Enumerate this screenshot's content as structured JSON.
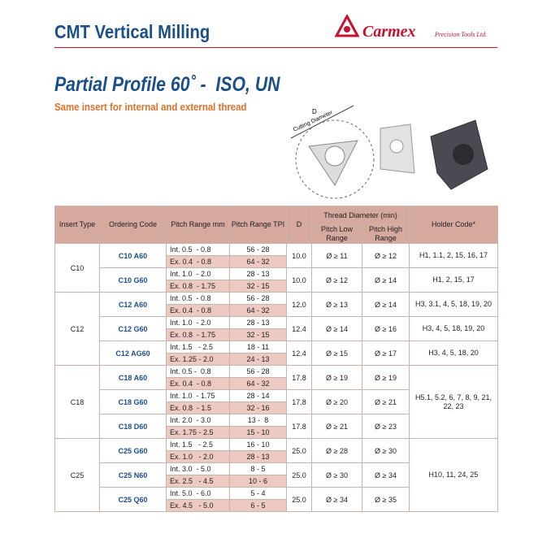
{
  "header": {
    "title": "CMT Vertical Milling",
    "brand": "Carmex",
    "brand_tagline": "Precision Tools Ltd."
  },
  "section": {
    "title": "Partial Profile 60˚ -  ISO, UN",
    "subtitle": "Same insert for internal and external thread"
  },
  "diagram": {
    "label_d": "D",
    "label_cutting": "Cutting Diameter"
  },
  "table": {
    "columns": {
      "insert_type": "Insert Type",
      "ordering_code": "Ordering Code",
      "pitch_mm": "Pitch Range mm",
      "pitch_tpi": "Pitch Range TPI",
      "d": "D",
      "thread_diameter": "Thread Diameter (min)",
      "low": "Pitch Low Range",
      "high": "Pitch High Range",
      "holder": "Holder Code*"
    },
    "groups": [
      {
        "type": "C10",
        "holder": null,
        "codes": [
          {
            "code": "C10 A60",
            "pitch": [
              [
                "Int. 0.5  - 0.8",
                "56 - 28"
              ],
              [
                "Ex. 0.4  - 0.8",
                "64 - 32"
              ]
            ],
            "d": "10.0",
            "low": "Ø ≥ 11",
            "high": "Ø ≥ 12",
            "holder": "H1, 1.1, 2, 15, 16, 17"
          },
          {
            "code": "C10 G60",
            "pitch": [
              [
                "Int. 1.0  - 2.0",
                "28 - 13"
              ],
              [
                "Ex. 0.8  - 1.75",
                "32 - 15"
              ]
            ],
            "d": "10.0",
            "low": "Ø ≥ 12",
            "high": "Ø ≥ 14",
            "holder": "H1, 2, 15, 17"
          }
        ]
      },
      {
        "type": "C12",
        "holder": null,
        "codes": [
          {
            "code": "C12 A60",
            "pitch": [
              [
                "Int. 0.5  - 0.8",
                "56 - 28"
              ],
              [
                "Ex. 0.4  - 0.8",
                "64 - 32"
              ]
            ],
            "d": "12.0",
            "low": "Ø ≥ 13",
            "high": "Ø ≥ 14",
            "holder": "H3, 3.1, 4, 5, 18, 19, 20"
          },
          {
            "code": "C12 G60",
            "pitch": [
              [
                "Int. 1.0  - 2.0",
                "28 - 13"
              ],
              [
                "Ex. 0.8  - 1.75",
                "32 - 15"
              ]
            ],
            "d": "12.4",
            "low": "Ø ≥ 14",
            "high": "Ø ≥ 16",
            "holder": "H3, 4, 5, 18, 19, 20"
          },
          {
            "code": "C12 AG60",
            "pitch": [
              [
                "Int. 1.5   - 2.5",
                "18 - 11"
              ],
              [
                "Ex. 1.25 - 2.0",
                "24 - 13"
              ]
            ],
            "d": "12.4",
            "low": "Ø ≥ 15",
            "high": "Ø ≥ 17",
            "holder": "H3, 4, 5, 18, 20"
          }
        ]
      },
      {
        "type": "C18",
        "holder": "H5.1, 5.2, 6, 7, 8, 9, 21, 22, 23",
        "codes": [
          {
            "code": "C18 A60",
            "pitch": [
              [
                "Int. 0.5 -  0.8",
                "56 - 28"
              ],
              [
                "Ex. 0.4  - 0.8",
                "64 - 32"
              ]
            ],
            "d": "17.8",
            "low": "Ø ≥ 19",
            "high": "Ø ≥ 19",
            "holder": null
          },
          {
            "code": "C18 G60",
            "pitch": [
              [
                "Int. 1.0  - 1.75",
                "28 - 14"
              ],
              [
                "Ex. 0.8  - 1.5",
                "32 - 16"
              ]
            ],
            "d": "17.8",
            "low": "Ø ≥ 20",
            "high": "Ø ≥ 21",
            "holder": null
          },
          {
            "code": "C18 D60",
            "pitch": [
              [
                "Int. 2.0  - 3.0",
                "13 -  8"
              ],
              [
                "Ex. 1.75 - 2.5",
                "15 - 10"
              ]
            ],
            "d": "17.8",
            "low": "Ø ≥ 21",
            "high": "Ø ≥ 23",
            "holder": null
          }
        ]
      },
      {
        "type": "C25",
        "holder": "H10, 11, 24, 25",
        "codes": [
          {
            "code": "C25 G60",
            "pitch": [
              [
                "Int. 1.5   - 2.5",
                "16 - 10"
              ],
              [
                "Ex. 1.0   - 2.0",
                "28 - 13"
              ]
            ],
            "d": "25.0",
            "low": "Ø ≥ 28",
            "high": "Ø ≥ 30",
            "holder": null
          },
          {
            "code": "C25 N60",
            "pitch": [
              [
                "Int. 3.0  - 5.0",
                "8 - 5"
              ],
              [
                "Ex. 2.5   - 4.5",
                "10 - 6"
              ]
            ],
            "d": "25.0",
            "low": "Ø ≥ 30",
            "high": "Ø ≥ 34",
            "holder": null
          },
          {
            "code": "C25 Q60",
            "pitch": [
              [
                "Int. 5.0  - 6.0",
                "5 - 4"
              ],
              [
                "Ex. 4.5   - 5.0",
                "6 - 5"
              ]
            ],
            "d": "25.0",
            "low": "Ø ≥ 34",
            "high": "Ø ≥ 35",
            "holder": null
          }
        ]
      }
    ]
  }
}
